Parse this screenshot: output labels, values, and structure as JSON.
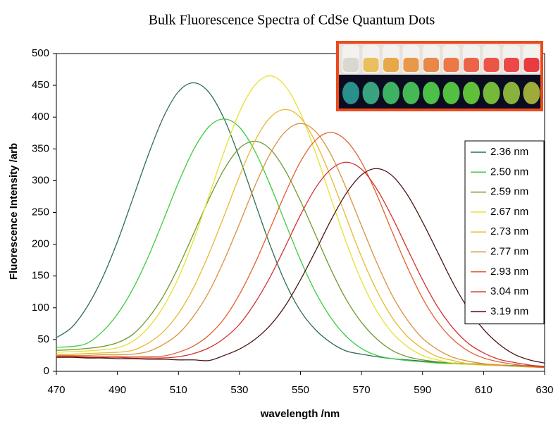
{
  "chart_data": {
    "type": "line",
    "title": "Bulk Fluorescence Spectra of CdSe Quantum Dots",
    "xlabel": "wavelength /nm",
    "ylabel": "Fluorescence Intensity /arb",
    "x": [
      470,
      475,
      480,
      485,
      490,
      495,
      500,
      505,
      510,
      515,
      520,
      525,
      530,
      535,
      540,
      545,
      550,
      555,
      560,
      565,
      570,
      575,
      580,
      585,
      590,
      595,
      600,
      605,
      610,
      615,
      620,
      625,
      630
    ],
    "xlim": [
      470,
      630
    ],
    "xticks": [
      470,
      490,
      510,
      530,
      550,
      570,
      590,
      610,
      630
    ],
    "ylim": [
      0,
      500
    ],
    "yticks": [
      0,
      50,
      100,
      150,
      200,
      250,
      300,
      350,
      400,
      450,
      500
    ],
    "grid": false,
    "legend": "right",
    "series": [
      {
        "name": "2.36 nm",
        "color": "#2f6e52",
        "values": [
          53,
          69,
          101,
          146,
          204,
          271,
          339,
          399,
          440,
          454,
          439,
          397,
          336,
          267,
          199,
          140,
          95,
          65,
          45,
          32,
          27,
          23,
          20,
          18,
          16,
          14,
          13,
          12,
          11,
          10,
          9,
          9,
          8
        ]
      },
      {
        "name": "2.50 nm",
        "color": "#3ccc3c",
        "values": [
          38,
          39,
          44,
          62,
          90,
          129,
          179,
          237,
          297,
          349,
          385,
          397,
          384,
          347,
          294,
          234,
          175,
          124,
          84,
          55,
          36,
          25,
          20,
          17,
          15,
          13,
          12,
          11,
          10,
          9,
          9,
          8,
          8
        ]
      },
      {
        "name": "2.59 nm",
        "color": "#6e9a2c",
        "values": [
          33,
          34,
          36,
          39,
          45,
          58,
          83,
          118,
          164,
          217,
          271,
          318,
          351,
          362,
          350,
          316,
          268,
          214,
          160,
          113,
          77,
          51,
          33,
          23,
          18,
          15,
          13,
          12,
          11,
          10,
          9,
          8,
          8
        ]
      },
      {
        "name": "2.67 nm",
        "color": "#e8e030",
        "values": [
          30,
          31,
          32,
          34,
          37,
          47,
          68,
          101,
          147,
          207,
          276,
          346,
          408,
          450,
          465,
          449,
          406,
          343,
          272,
          203,
          142,
          95,
          61,
          39,
          25,
          18,
          13,
          11,
          10,
          9,
          8,
          7,
          6
        ]
      },
      {
        "name": "2.73 nm",
        "color": "#e8b830",
        "values": [
          27,
          27,
          28,
          29,
          30,
          33,
          44,
          62,
          91,
          132,
          185,
          245,
          307,
          362,
          399,
          412,
          399,
          360,
          305,
          242,
          180,
          127,
          85,
          55,
          36,
          23,
          17,
          12,
          10,
          9,
          8,
          7,
          6
        ]
      },
      {
        "name": "2.77 nm",
        "color": "#d9913a",
        "values": [
          25,
          25,
          25,
          26,
          26,
          27,
          31,
          42,
          59,
          87,
          125,
          175,
          232,
          291,
          342,
          377,
          390,
          377,
          341,
          288,
          229,
          171,
          120,
          81,
          52,
          34,
          22,
          16,
          12,
          10,
          8,
          7,
          6
        ]
      },
      {
        "name": "2.93 nm",
        "color": "#e0602e",
        "values": [
          24,
          24,
          23,
          23,
          23,
          23,
          23,
          24,
          30,
          40,
          57,
          83,
          121,
          169,
          224,
          280,
          330,
          364,
          376,
          363,
          329,
          278,
          220,
          164,
          115,
          77,
          50,
          32,
          21,
          15,
          11,
          8,
          6
        ]
      },
      {
        "name": "3.04 nm",
        "color": "#d43030",
        "values": [
          23,
          23,
          22,
          22,
          22,
          21,
          21,
          21,
          23,
          28,
          37,
          52,
          74,
          107,
          148,
          196,
          246,
          289,
          318,
          329,
          318,
          287,
          243,
          193,
          144,
          101,
          68,
          44,
          29,
          19,
          14,
          10,
          7
        ]
      },
      {
        "name": "3.19 nm",
        "color": "#4a1414",
        "values": [
          22,
          22,
          21,
          21,
          20,
          20,
          19,
          19,
          18,
          18,
          17,
          25,
          35,
          50,
          72,
          103,
          144,
          190,
          238,
          280,
          309,
          319,
          308,
          278,
          235,
          187,
          139,
          98,
          66,
          43,
          27,
          18,
          13
        ]
      }
    ]
  }
}
